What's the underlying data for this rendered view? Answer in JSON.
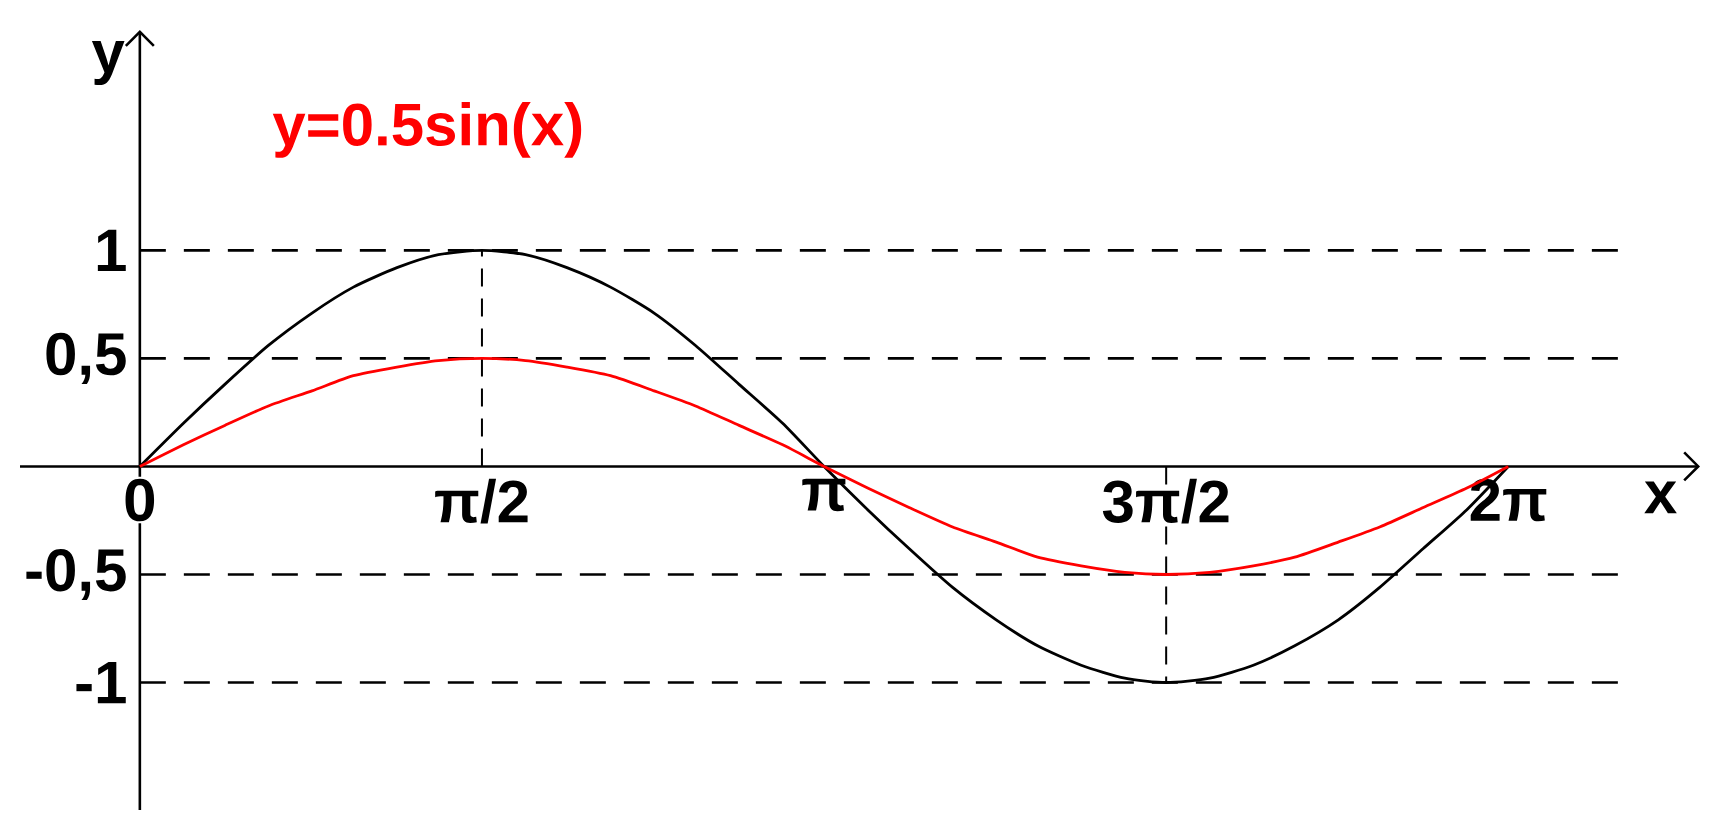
{
  "chart_data": {
    "type": "line",
    "xlabel": "x",
    "ylabel": "y",
    "x": [
      0,
      0.2,
      0.39,
      0.59,
      0.79,
      0.98,
      1.18,
      1.37,
      1.57,
      1.77,
      1.96,
      2.16,
      2.36,
      2.55,
      2.75,
      2.95,
      3.14,
      3.34,
      3.53,
      3.73,
      3.93,
      4.12,
      4.32,
      4.52,
      4.71,
      4.91,
      5.11,
      5.3,
      5.5,
      5.69,
      5.89,
      6.09,
      6.28
    ],
    "series": [
      {
        "color": "#000000",
        "values": [
          0,
          0.2,
          0.38,
          0.56,
          0.71,
          0.83,
          0.92,
          0.98,
          1,
          0.98,
          0.92,
          0.83,
          0.71,
          0.56,
          0.38,
          0.2,
          0,
          -0.2,
          -0.38,
          -0.56,
          -0.71,
          -0.83,
          -0.92,
          -0.98,
          -1,
          -0.98,
          -0.92,
          -0.83,
          -0.71,
          -0.56,
          -0.38,
          -0.2,
          0
        ]
      },
      {
        "name": "y=0.5sin(x)",
        "color": "#ff0000",
        "values": [
          0,
          0.1,
          0.19,
          0.28,
          0.35,
          0.42,
          0.46,
          0.49,
          0.5,
          0.49,
          0.46,
          0.42,
          0.35,
          0.28,
          0.19,
          0.1,
          0,
          -0.1,
          -0.19,
          -0.28,
          -0.35,
          -0.42,
          -0.46,
          -0.49,
          -0.5,
          -0.49,
          -0.46,
          -0.42,
          -0.35,
          -0.28,
          -0.19,
          -0.1,
          0
        ]
      }
    ],
    "xlim": [
      -0.55,
      7.16
    ],
    "ylim": [
      -1.59,
      2.02
    ],
    "xticks": [
      0,
      {
        "value": 1.57,
        "label": "π/2"
      },
      {
        "value": 3.14,
        "label": "π"
      },
      {
        "value": 4.71,
        "label": "3π/2"
      },
      {
        "value": 6.28,
        "label": "2π"
      }
    ],
    "yticks": [
      -1,
      {
        "value": -0.5,
        "label": "-0,5"
      },
      {
        "value": 0.5,
        "label": "0,5"
      },
      1
    ],
    "ref_lines": [
      {
        "axis": "y",
        "value": 1,
        "line_style": "dashed"
      },
      {
        "axis": "y",
        "value": 0.5,
        "line_style": "dashed"
      },
      {
        "axis": "y",
        "value": -0.5,
        "line_style": "dashed"
      },
      {
        "axis": "y",
        "value": -1,
        "line_style": "dashed"
      },
      {
        "axis": "x",
        "value": 1.57,
        "line_style": "dashed"
      },
      {
        "axis": "x",
        "value": 4.71,
        "line_style": "dashed"
      }
    ],
    "line_style": "solid"
  }
}
